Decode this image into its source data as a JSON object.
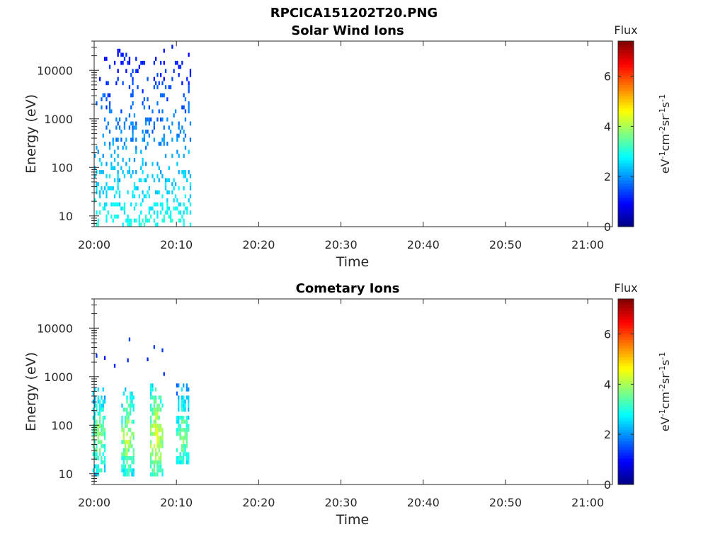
{
  "figure": {
    "title": "RPCICA151202T20.PNG",
    "colormap": "jet",
    "colors": {
      "axis": "#262626",
      "background": "#ffffff"
    }
  },
  "chart_data": [
    {
      "type": "heatmap",
      "title": "Solar Wind Ions",
      "xlabel": "Time",
      "ylabel": "Energy (eV)",
      "yscale": "log",
      "ylim": [
        6,
        40000
      ],
      "xlim": [
        "20:00",
        "21:03"
      ],
      "x_ticks": [
        "20:00",
        "20:10",
        "20:20",
        "20:30",
        "20:40",
        "20:50",
        "21:00"
      ],
      "y_ticks": [
        "10",
        "100",
        "1000",
        "10000"
      ],
      "grid": false,
      "colorbar": {
        "label": "Flux",
        "units_label": "eV-1cm-2sr-1s-1",
        "range": [
          0,
          7.4
        ],
        "ticks": [
          "0",
          "2",
          "4",
          "6"
        ]
      },
      "data_extent": {
        "time_start": "20:00",
        "time_end": "20:11:40"
      },
      "description_values": [
        {
          "energy_range": [
            6,
            15
          ],
          "flux": 3.2
        },
        {
          "energy_range": [
            15,
            100
          ],
          "flux": 2.6
        },
        {
          "energy_range": [
            100,
            1000
          ],
          "flux": 1.8
        },
        {
          "energy_range": [
            1000,
            25000
          ],
          "flux": 1.2
        }
      ]
    },
    {
      "type": "heatmap",
      "title": "Cometary Ions",
      "xlabel": "Time",
      "ylabel": "Energy (eV)",
      "yscale": "log",
      "ylim": [
        6,
        40000
      ],
      "xlim": [
        "20:00",
        "21:03"
      ],
      "x_ticks": [
        "20:00",
        "20:10",
        "20:20",
        "20:30",
        "20:40",
        "20:50",
        "21:00"
      ],
      "y_ticks": [
        "10",
        "100",
        "1000",
        "10000"
      ],
      "grid": false,
      "colorbar": {
        "label": "Flux",
        "units_label": "eV-1cm-2sr-1s-1",
        "range": [
          0,
          7.4
        ],
        "ticks": [
          "0",
          "2",
          "4",
          "6"
        ]
      },
      "data_extent": {
        "time_start": "20:00",
        "time_end": "20:11:40"
      },
      "bursts": [
        {
          "time": "20:00:30",
          "energy_range": [
            8,
            600
          ],
          "peak_flux": 4.0
        },
        {
          "time": "20:04:00",
          "energy_range": [
            8,
            500
          ],
          "peak_flux": 4.2
        },
        {
          "time": "20:07:30",
          "energy_range": [
            8,
            600
          ],
          "peak_flux": 4.6
        },
        {
          "time": "20:10:40",
          "energy_range": [
            15,
            600
          ],
          "peak_flux": 3.8
        }
      ]
    }
  ]
}
